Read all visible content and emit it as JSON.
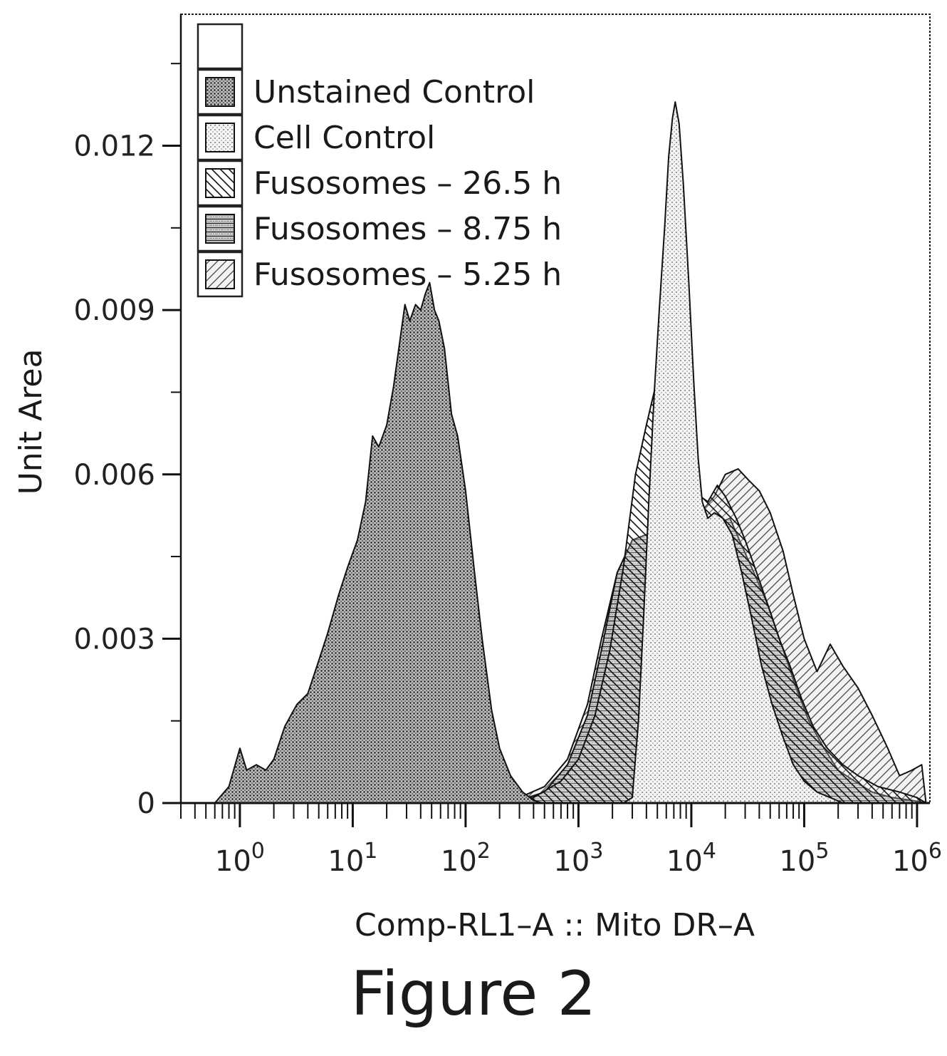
{
  "caption": "Figure 2",
  "chart_data": {
    "type": "area",
    "xlabel": "Comp-RL1–A :: Mito DR–A",
    "ylabel": "Unit Area",
    "x_scale": "log",
    "xlim": [
      0.3,
      1300000
    ],
    "ylim": [
      0,
      0.0144
    ],
    "x_ticks": [
      {
        "base": "10",
        "exp": "0",
        "value": 1
      },
      {
        "base": "10",
        "exp": "1",
        "value": 10
      },
      {
        "base": "10",
        "exp": "2",
        "value": 100
      },
      {
        "base": "10",
        "exp": "3",
        "value": 1000
      },
      {
        "base": "10",
        "exp": "4",
        "value": 10000
      },
      {
        "base": "10",
        "exp": "5",
        "value": 100000
      },
      {
        "base": "10",
        "exp": "6",
        "value": 1000000
      }
    ],
    "y_ticks": [
      {
        "label": "0",
        "value": 0
      },
      {
        "label": "0.003",
        "value": 0.003
      },
      {
        "label": "0.006",
        "value": 0.006
      },
      {
        "label": "0.009",
        "value": 0.009
      },
      {
        "label": "0.012",
        "value": 0.012
      }
    ],
    "legend_position": "top-left",
    "legend_header": "",
    "series": [
      {
        "name": "Fusosomes – 5.25 h",
        "pattern": "diag-fwd",
        "points": [
          [
            150,
            0
          ],
          [
            300,
            0.0001
          ],
          [
            500,
            0.0003
          ],
          [
            800,
            0.0008
          ],
          [
            1200,
            0.0018
          ],
          [
            1600,
            0.003
          ],
          [
            2200,
            0.0042
          ],
          [
            3000,
            0.0048
          ],
          [
            4000,
            0.0049
          ],
          [
            5500,
            0.005
          ],
          [
            7000,
            0.0051
          ],
          [
            9000,
            0.0052
          ],
          [
            12000,
            0.0053
          ],
          [
            16000,
            0.0056
          ],
          [
            20000,
            0.006
          ],
          [
            26000,
            0.0061
          ],
          [
            32000,
            0.0059
          ],
          [
            40000,
            0.0057
          ],
          [
            50000,
            0.0053
          ],
          [
            65000,
            0.0046
          ],
          [
            80000,
            0.0038
          ],
          [
            100000,
            0.003
          ],
          [
            130000,
            0.0024
          ],
          [
            170000,
            0.0029
          ],
          [
            220000,
            0.0025
          ],
          [
            300000,
            0.0021
          ],
          [
            400000,
            0.0016
          ],
          [
            550000,
            0.001
          ],
          [
            700000,
            0.0005
          ],
          [
            900000,
            0.0006
          ],
          [
            1100000,
            0.0007
          ],
          [
            1200000,
            0
          ]
        ]
      },
      {
        "name": "Fusosomes – 8.75 h",
        "pattern": "horiz",
        "points": [
          [
            150,
            0
          ],
          [
            300,
            5e-05
          ],
          [
            500,
            0.0002
          ],
          [
            800,
            0.0007
          ],
          [
            1200,
            0.0016
          ],
          [
            1600,
            0.0028
          ],
          [
            2200,
            0.0042
          ],
          [
            3000,
            0.0048
          ],
          [
            4000,
            0.0049
          ],
          [
            5000,
            0.005
          ],
          [
            6500,
            0.0049
          ],
          [
            8000,
            0.0048
          ],
          [
            10000,
            0.0047
          ],
          [
            13000,
            0.005
          ],
          [
            17000,
            0.0051
          ],
          [
            22000,
            0.0052
          ],
          [
            28000,
            0.0047
          ],
          [
            36000,
            0.0042
          ],
          [
            48000,
            0.0036
          ],
          [
            65000,
            0.0028
          ],
          [
            85000,
            0.0021
          ],
          [
            110000,
            0.0015
          ],
          [
            150000,
            0.001
          ],
          [
            200000,
            0.0006
          ],
          [
            280000,
            0.0004
          ],
          [
            400000,
            0.0002
          ],
          [
            600000,
            0.0001
          ],
          [
            900000,
            5e-05
          ],
          [
            1200000,
            0
          ]
        ]
      },
      {
        "name": "Fusosomes – 26.5 h",
        "pattern": "diag-back",
        "points": [
          [
            200,
            0
          ],
          [
            400,
            0.0001
          ],
          [
            700,
            0.0004
          ],
          [
            1000,
            0.0008
          ],
          [
            1400,
            0.0016
          ],
          [
            1900,
            0.0028
          ],
          [
            2500,
            0.0043
          ],
          [
            3200,
            0.006
          ],
          [
            4000,
            0.0069
          ],
          [
            4800,
            0.0076
          ],
          [
            5600,
            0.0073
          ],
          [
            6500,
            0.0071
          ],
          [
            7500,
            0.0066
          ],
          [
            8500,
            0.0063
          ],
          [
            10000,
            0.006
          ],
          [
            12000,
            0.0056
          ],
          [
            14000,
            0.0055
          ],
          [
            17000,
            0.0058
          ],
          [
            20000,
            0.0056
          ],
          [
            25000,
            0.0052
          ],
          [
            30000,
            0.0048
          ],
          [
            38000,
            0.0042
          ],
          [
            48000,
            0.0036
          ],
          [
            60000,
            0.003
          ],
          [
            75000,
            0.0025
          ],
          [
            95000,
            0.0019
          ],
          [
            120000,
            0.0014
          ],
          [
            160000,
            0.001
          ],
          [
            220000,
            0.0007
          ],
          [
            300000,
            0.0005
          ],
          [
            450000,
            0.0003
          ],
          [
            700000,
            0.0002
          ],
          [
            1000000,
            0.0001
          ],
          [
            1200000,
            0
          ]
        ]
      },
      {
        "name": "Cell Control",
        "pattern": "dots-light",
        "points": [
          [
            2500,
            0
          ],
          [
            3000,
            0.0001
          ],
          [
            3400,
            0.0015
          ],
          [
            3800,
            0.0035
          ],
          [
            4200,
            0.0055
          ],
          [
            4700,
            0.0075
          ],
          [
            5200,
            0.009
          ],
          [
            5800,
            0.0105
          ],
          [
            6300,
            0.0118
          ],
          [
            6800,
            0.0125
          ],
          [
            7200,
            0.0128
          ],
          [
            7800,
            0.0124
          ],
          [
            8500,
            0.0113
          ],
          [
            9500,
            0.0095
          ],
          [
            10500,
            0.0077
          ],
          [
            11500,
            0.0063
          ],
          [
            12500,
            0.0055
          ],
          [
            14000,
            0.0052
          ],
          [
            16000,
            0.0053
          ],
          [
            19000,
            0.0052
          ],
          [
            23000,
            0.0049
          ],
          [
            28000,
            0.0042
          ],
          [
            34000,
            0.0034
          ],
          [
            42000,
            0.0025
          ],
          [
            52000,
            0.0018
          ],
          [
            65000,
            0.0012
          ],
          [
            80000,
            0.0007
          ],
          [
            100000,
            0.0004
          ],
          [
            130000,
            0.0002
          ],
          [
            170000,
            0.0001
          ],
          [
            220000,
            0
          ]
        ]
      },
      {
        "name": "Unstained Control",
        "pattern": "dots-dark",
        "points": [
          [
            0.6,
            0
          ],
          [
            0.8,
            0.0003
          ],
          [
            1.0,
            0.001
          ],
          [
            1.15,
            0.0006
          ],
          [
            1.4,
            0.0007
          ],
          [
            1.7,
            0.0006
          ],
          [
            2.0,
            0.0008
          ],
          [
            2.5,
            0.0014
          ],
          [
            3.2,
            0.0018
          ],
          [
            4.0,
            0.002
          ],
          [
            5.0,
            0.0026
          ],
          [
            6.0,
            0.0031
          ],
          [
            7.5,
            0.0038
          ],
          [
            9.0,
            0.0043
          ],
          [
            11,
            0.0048
          ],
          [
            13,
            0.0055
          ],
          [
            15,
            0.0067
          ],
          [
            17,
            0.0065
          ],
          [
            20,
            0.0069
          ],
          [
            23,
            0.0076
          ],
          [
            26,
            0.0084
          ],
          [
            29,
            0.0091
          ],
          [
            32,
            0.0088
          ],
          [
            36,
            0.0091
          ],
          [
            40,
            0.009
          ],
          [
            44,
            0.0093
          ],
          [
            48,
            0.0095
          ],
          [
            53,
            0.009
          ],
          [
            58,
            0.0088
          ],
          [
            65,
            0.0083
          ],
          [
            75,
            0.0071
          ],
          [
            85,
            0.0067
          ],
          [
            100,
            0.0057
          ],
          [
            120,
            0.0042
          ],
          [
            140,
            0.003
          ],
          [
            170,
            0.0017
          ],
          [
            200,
            0.001
          ],
          [
            250,
            0.0005
          ],
          [
            320,
            0.0002
          ],
          [
            400,
            5e-05
          ],
          [
            480,
            0
          ]
        ]
      }
    ]
  }
}
